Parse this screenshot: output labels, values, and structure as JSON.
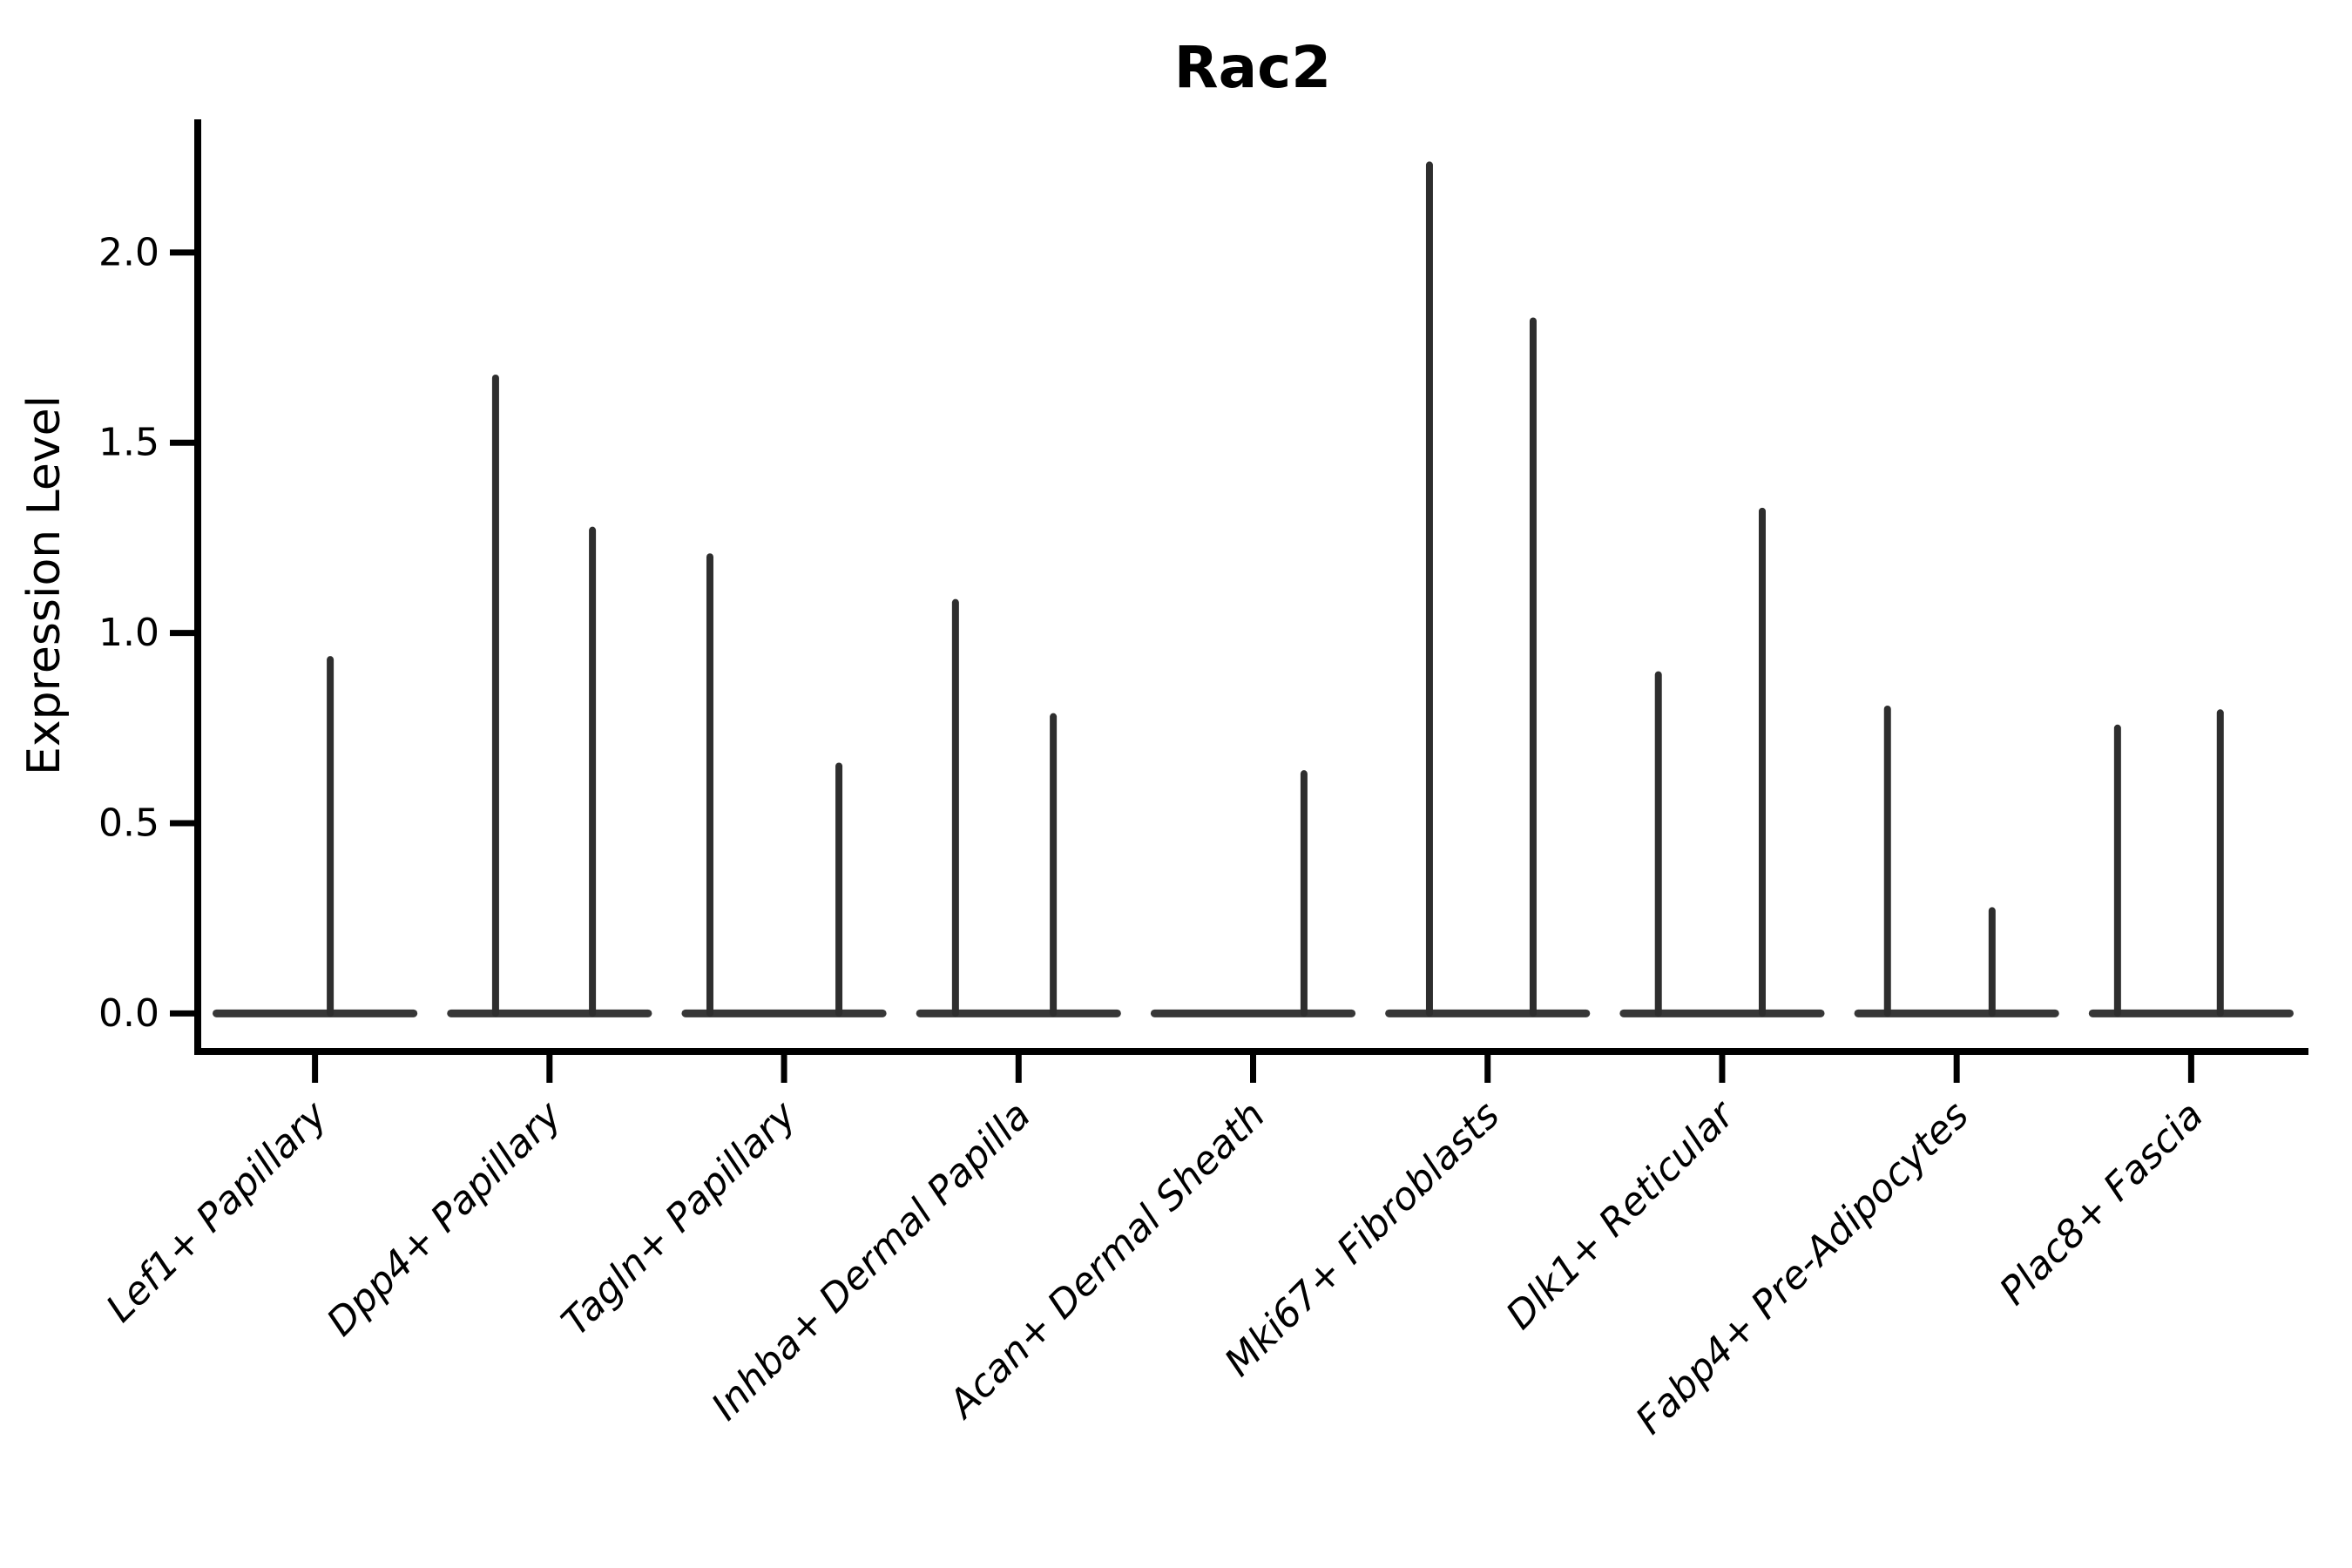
{
  "chart_data": {
    "type": "violin",
    "title": "Rac2",
    "ylabel": "Expression Level",
    "xlabel": "",
    "ylim": [
      -0.1,
      2.35
    ],
    "yticks": [
      0.0,
      0.5,
      1.0,
      1.5,
      2.0
    ],
    "ytick_decimals": 1,
    "grid": false,
    "legend": "none",
    "violin_line_color": "#2e2e2e",
    "baseline_color": "#373737",
    "axis_color": "#000000",
    "baseline_value": 0.0,
    "baseline_halfwidth_frac": 0.42,
    "x_label_rotation_deg": 45,
    "categories": [
      {
        "label": "Lef1+ Papillary",
        "spikes": [
          {
            "dx": 0.065,
            "value": 0.93
          }
        ]
      },
      {
        "label": "Dpp4+ Papillary",
        "spikes": [
          {
            "dx": -0.23,
            "value": 1.67
          },
          {
            "dx": 0.183,
            "value": 1.27
          }
        ]
      },
      {
        "label": "Tagln+ Papillary",
        "spikes": [
          {
            "dx": -0.316,
            "value": 1.2
          },
          {
            "dx": 0.234,
            "value": 0.65
          }
        ]
      },
      {
        "label": "Inhba+ Dermal Papilla",
        "spikes": [
          {
            "dx": -0.269,
            "value": 1.08
          },
          {
            "dx": 0.148,
            "value": 0.78
          }
        ]
      },
      {
        "label": "Acan+ Dermal Sheath",
        "spikes": [
          {
            "dx": 0.217,
            "value": 0.63
          }
        ]
      },
      {
        "label": "Mki67+ Fibroblasts",
        "spikes": [
          {
            "dx": -0.248,
            "value": 2.23
          },
          {
            "dx": 0.194,
            "value": 1.82
          }
        ]
      },
      {
        "label": "Dlk1+ Reticular",
        "spikes": [
          {
            "dx": -0.272,
            "value": 0.89
          },
          {
            "dx": 0.171,
            "value": 1.32
          }
        ]
      },
      {
        "label": "Fabp4+ Pre-Adipocytes",
        "spikes": [
          {
            "dx": -0.295,
            "value": 0.8
          },
          {
            "dx": 0.151,
            "value": 0.27
          }
        ]
      },
      {
        "label": "Plac8+ Fascia",
        "spikes": [
          {
            "dx": -0.314,
            "value": 0.75
          },
          {
            "dx": 0.124,
            "value": 0.79
          }
        ]
      }
    ]
  }
}
